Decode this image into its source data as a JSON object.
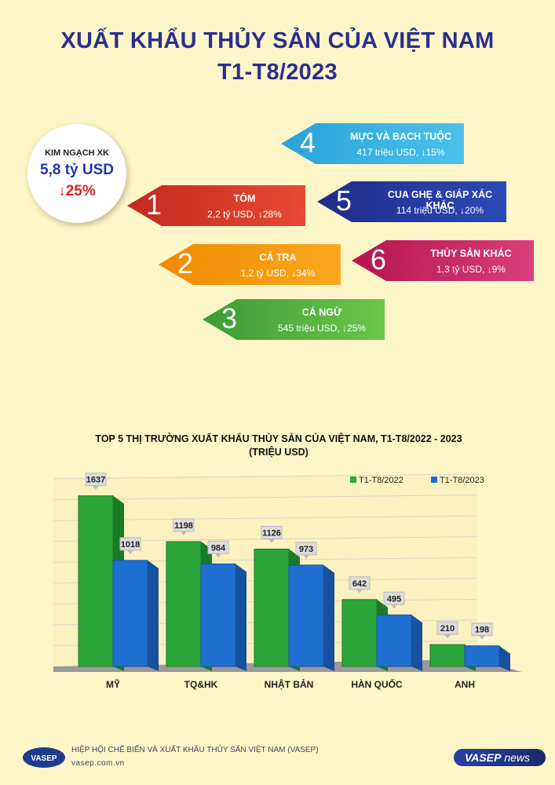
{
  "title_line1": "XUẤT KHẨU THỦY SẢN CỦA VIỆT NAM",
  "title_line2": "T1-T8/2023",
  "kpi": {
    "label": "KIM NGẠCH XK",
    "value": "5,8 tỷ USD",
    "change": "↓25%"
  },
  "products": [
    {
      "rank": "1",
      "name": "TÔM",
      "detail": "2,2 tỷ USD, ↓28%"
    },
    {
      "rank": "2",
      "name": "CÁ TRA",
      "detail": "1,2 tỷ USD, ↓34%"
    },
    {
      "rank": "3",
      "name": "CÁ NGỪ",
      "detail": "545 triệu USD, ↓25%"
    },
    {
      "rank": "4",
      "name": "MỰC VÀ BẠCH TUỘC",
      "detail": "417 triệu USD, ↓15%"
    },
    {
      "rank": "5",
      "name": "CUA GHẸ & GIÁP XÁC KHÁC",
      "detail": "114 triệu USD, ↓20%"
    },
    {
      "rank": "6",
      "name": "THỦY SẢN KHÁC",
      "detail": "1,3 tỷ USD, ↓9%"
    }
  ],
  "chart_title_line1": "TOP 5 THỊ TRƯỜNG XUẤT KHẨU THỦY SẢN CỦA VIỆT NAM, T1-T8/2022 - 2023",
  "chart_title_line2": "(TRIỆU USD)",
  "chart_data": {
    "type": "bar",
    "categories": [
      "MỸ",
      "TQ&HK",
      "NHẬT BẢN",
      "HÀN QUỐC",
      "ANH"
    ],
    "series": [
      {
        "name": "T1-T8/2022",
        "values": [
          1637,
          1198,
          1126,
          642,
          210
        ],
        "color": "#2ba63a"
      },
      {
        "name": "T1-T8/2023",
        "values": [
          1018,
          984,
          973,
          495,
          198
        ],
        "color": "#1f6fd0"
      }
    ],
    "ylim": [
      0,
      1800
    ],
    "grid": true,
    "legend": "top-right"
  },
  "footer": {
    "org": "HIỆP HỘI CHẾ BIẾN VÀ XUẤT KHẨU THỦY SẢN VIỆT NAM (VASEP)",
    "url": "vasep.com.vn",
    "logo_text": "VASEP",
    "brand": "VASEP",
    "brand_suffix": "news"
  }
}
